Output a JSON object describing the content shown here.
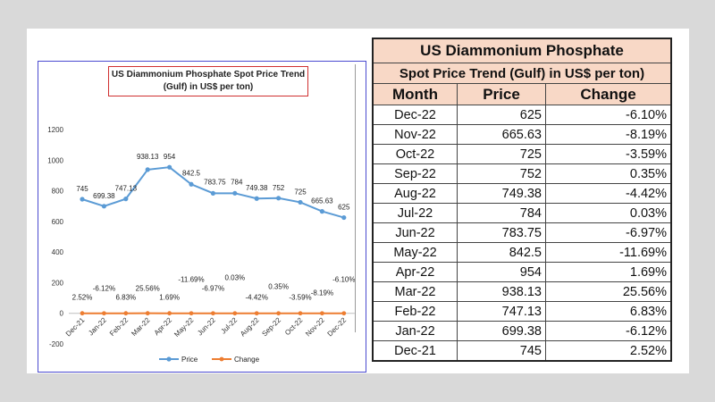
{
  "chart_data": {
    "type": "line",
    "title_lines": [
      "US Diammonium Phosphate Spot Price Trend",
      "(Gulf) in US$ per ton)"
    ],
    "categories": [
      "Dec-21",
      "Jan-22",
      "Feb-22",
      "Mar-22",
      "Apr-22",
      "May-22",
      "Jun-22",
      "Jul-22",
      "Aug-22",
      "Sep-22",
      "Oct-22",
      "Nov-22",
      "Dec-22"
    ],
    "series": [
      {
        "name": "Price",
        "color": "#5b9bd5",
        "values": [
          745,
          699.38,
          747.13,
          938.13,
          954,
          842.5,
          783.75,
          784,
          749.38,
          752,
          725,
          665.63,
          625
        ],
        "labels": [
          "745",
          "699.38",
          "747.13",
          "938.13",
          "954",
          "842.5",
          "783.75",
          "784",
          "749.38",
          "752",
          "725",
          "665.63",
          "625"
        ]
      },
      {
        "name": "Change",
        "color": "#ed7d31",
        "values": [
          0.0252,
          -0.0612,
          0.0683,
          0.2556,
          0.0169,
          -0.1169,
          -0.0697,
          0.0003,
          -0.0442,
          0.0035,
          -0.0359,
          -0.0819,
          -0.061
        ],
        "labels": [
          "2.52%",
          "-6.12%",
          "6.83%",
          "25.56%",
          "1.69%",
          "-11.69%",
          "-6.97%",
          "0.03%",
          "-4.42%",
          "0.35%",
          "-3.59%",
          "-8.19%",
          "-6.10%"
        ]
      }
    ],
    "yticks": [
      -200,
      0,
      200,
      400,
      600,
      800,
      1000,
      1200
    ],
    "ylim": [
      -200,
      1200
    ],
    "grid": false,
    "legend_position": "bottom"
  },
  "table": {
    "title": "US Diammonium Phosphate",
    "subtitle": "Spot Price Trend (Gulf) in US$ per ton)",
    "headers": [
      "Month",
      "Price",
      "Change"
    ],
    "rows": [
      [
        "Dec-22",
        "625",
        "-6.10%"
      ],
      [
        "Nov-22",
        "665.63",
        "-8.19%"
      ],
      [
        "Oct-22",
        "725",
        "-3.59%"
      ],
      [
        "Sep-22",
        "752",
        "0.35%"
      ],
      [
        "Aug-22",
        "749.38",
        "-4.42%"
      ],
      [
        "Jul-22",
        "784",
        "0.03%"
      ],
      [
        "Jun-22",
        "783.75",
        "-6.97%"
      ],
      [
        "May-22",
        "842.5",
        "-11.69%"
      ],
      [
        "Apr-22",
        "954",
        "1.69%"
      ],
      [
        "Mar-22",
        "938.13",
        "25.56%"
      ],
      [
        "Feb-22",
        "747.13",
        "6.83%"
      ],
      [
        "Jan-22",
        "699.38",
        "-6.12%"
      ],
      [
        "Dec-21",
        "745",
        "2.52%"
      ]
    ]
  }
}
